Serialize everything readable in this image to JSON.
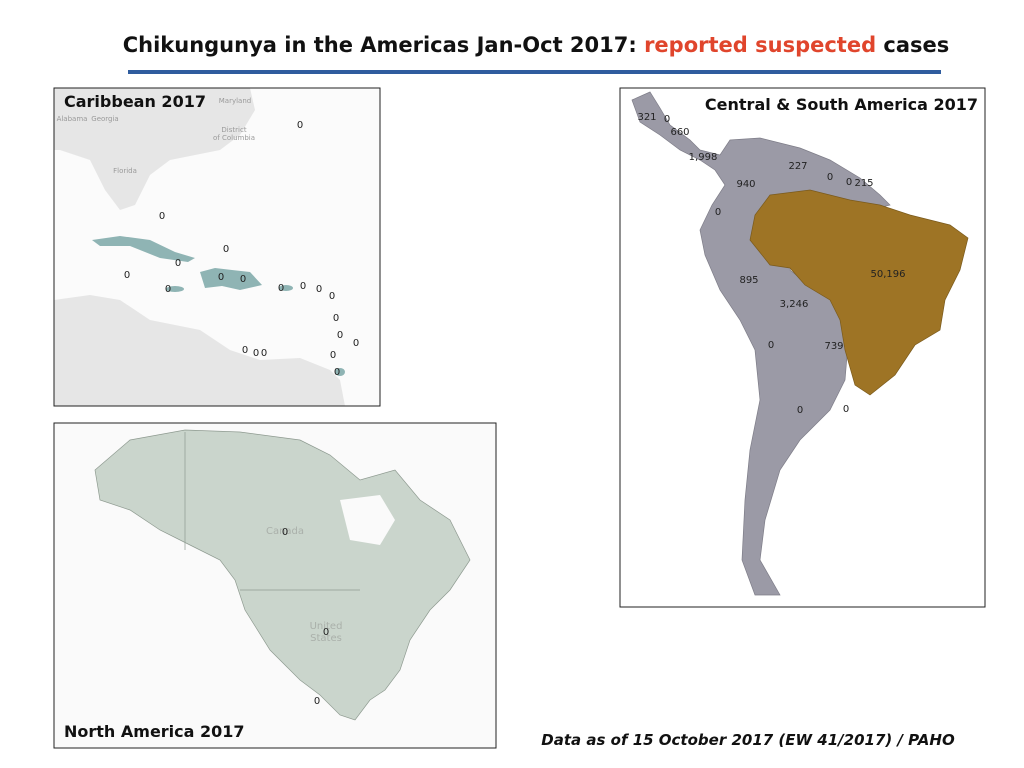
{
  "header": {
    "title_start": "Chikungunya in the Americas Jan-Oct 2017: ",
    "title_highlight": "reported suspected",
    "title_end": " cases"
  },
  "caribbean": {
    "title": "Caribbean 2017",
    "basemap_labels": [
      "Maryland",
      "Alabama",
      "Georgia",
      "District",
      "of Columbia",
      "Florida"
    ],
    "labels": [
      "0",
      "0",
      "0",
      "0",
      "0",
      "0",
      "0",
      "0",
      "0",
      "0",
      "0",
      "0",
      "0",
      "0",
      "0",
      "0",
      "0",
      "0",
      "0",
      "0"
    ]
  },
  "central_south_america": {
    "title": "Central & South America  2017",
    "labels": [
      "321",
      "0",
      "660",
      "1,998",
      "227",
      "940",
      "0",
      "0",
      "215",
      "0",
      "50,196",
      "895",
      "3,246",
      "0",
      "739",
      "0",
      "0"
    ]
  },
  "north_america": {
    "title": "North America 2017",
    "basemap_labels": [
      "Canada",
      "United",
      "States"
    ],
    "labels": [
      "0",
      "0",
      "0"
    ]
  },
  "footer": {
    "source": "Data as of 15 October 2017 (EW 41/2017) / PAHO"
  }
}
